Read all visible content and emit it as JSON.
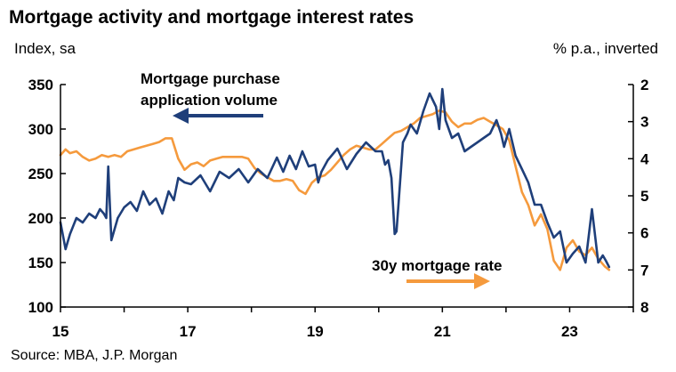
{
  "chart_data": {
    "type": "line",
    "title": "Mortgage activity and mortgage interest rates",
    "left_axis_label": "Index, sa",
    "right_axis_label": "% p.a., inverted",
    "source": "Source: MBA, J.P. Morgan",
    "x_ticks": [
      "15",
      "17",
      "19",
      "21",
      "23"
    ],
    "xlim": [
      2015,
      2024
    ],
    "y_left": {
      "ticks": [
        "100",
        "150",
        "200",
        "250",
        "300",
        "350"
      ],
      "range": [
        100,
        350
      ]
    },
    "y_right": {
      "ticks": [
        "2",
        "3",
        "4",
        "5",
        "6",
        "7",
        "8"
      ],
      "range": [
        2,
        8
      ],
      "inverted": true
    },
    "grid": false,
    "annotations": {
      "purchase": [
        "Mortgage purchase",
        "application volume"
      ],
      "rate": "30y mortgage rate"
    },
    "colors": {
      "purchase": "#1f3f7a",
      "rate": "#f59a3d"
    },
    "series": [
      {
        "name": "Mortgage purchase application volume",
        "axis": "left",
        "color": "#1f3f7a",
        "x": [
          2015.0,
          2015.08,
          2015.15,
          2015.25,
          2015.35,
          2015.45,
          2015.55,
          2015.62,
          2015.68,
          2015.72,
          2015.75,
          2015.8,
          2015.9,
          2016.0,
          2016.1,
          2016.2,
          2016.3,
          2016.4,
          2016.5,
          2016.6,
          2016.7,
          2016.78,
          2016.85,
          2016.95,
          2017.05,
          2017.2,
          2017.35,
          2017.5,
          2017.65,
          2017.8,
          2017.95,
          2018.1,
          2018.25,
          2018.4,
          2018.5,
          2018.6,
          2018.7,
          2018.8,
          2018.9,
          2019.0,
          2019.05,
          2019.1,
          2019.2,
          2019.35,
          2019.5,
          2019.65,
          2019.8,
          2019.95,
          2020.05,
          2020.1,
          2020.15,
          2020.2,
          2020.25,
          2020.28,
          2020.32,
          2020.38,
          2020.45,
          2020.5,
          2020.6,
          2020.7,
          2020.8,
          2020.9,
          2020.95,
          2021.0,
          2021.05,
          2021.15,
          2021.25,
          2021.35,
          2021.45,
          2021.55,
          2021.65,
          2021.75,
          2021.85,
          2021.92,
          2021.97,
          2022.05,
          2022.15,
          2022.25,
          2022.35,
          2022.45,
          2022.55,
          2022.65,
          2022.75,
          2022.85,
          2022.95,
          2023.05,
          2023.15,
          2023.25,
          2023.35,
          2023.45,
          2023.52,
          2023.57,
          2023.62
        ],
        "values": [
          195,
          165,
          182,
          200,
          195,
          205,
          200,
          210,
          205,
          200,
          258,
          175,
          200,
          212,
          218,
          208,
          230,
          215,
          222,
          205,
          230,
          220,
          245,
          240,
          238,
          248,
          230,
          252,
          245,
          255,
          240,
          255,
          245,
          268,
          252,
          270,
          255,
          275,
          258,
          260,
          240,
          252,
          265,
          278,
          255,
          272,
          285,
          275,
          275,
          260,
          265,
          245,
          182,
          185,
          225,
          285,
          295,
          305,
          295,
          320,
          340,
          325,
          300,
          345,
          310,
          290,
          295,
          275,
          280,
          285,
          290,
          295,
          310,
          295,
          280,
          300,
          270,
          255,
          240,
          215,
          215,
          195,
          178,
          185,
          150,
          160,
          168,
          150,
          210,
          150,
          158,
          152,
          145
        ]
      },
      {
        "name": "30y mortgage rate",
        "axis": "right",
        "color": "#f59a3d",
        "x": [
          2015.0,
          2015.08,
          2015.15,
          2015.25,
          2015.35,
          2015.45,
          2015.55,
          2015.65,
          2015.75,
          2015.85,
          2015.95,
          2016.05,
          2016.15,
          2016.25,
          2016.35,
          2016.45,
          2016.55,
          2016.65,
          2016.75,
          2016.85,
          2016.95,
          2017.05,
          2017.15,
          2017.25,
          2017.35,
          2017.45,
          2017.55,
          2017.65,
          2017.75,
          2017.85,
          2017.95,
          2018.05,
          2018.15,
          2018.25,
          2018.35,
          2018.45,
          2018.55,
          2018.65,
          2018.75,
          2018.85,
          2018.95,
          2019.05,
          2019.15,
          2019.25,
          2019.35,
          2019.45,
          2019.55,
          2019.65,
          2019.75,
          2019.85,
          2019.95,
          2020.05,
          2020.15,
          2020.25,
          2020.35,
          2020.45,
          2020.55,
          2020.65,
          2020.75,
          2020.85,
          2020.95,
          2021.05,
          2021.15,
          2021.25,
          2021.35,
          2021.45,
          2021.55,
          2021.65,
          2021.75,
          2021.85,
          2021.95,
          2022.05,
          2022.15,
          2022.25,
          2022.35,
          2022.45,
          2022.55,
          2022.65,
          2022.75,
          2022.85,
          2022.95,
          2023.05,
          2023.15,
          2023.25,
          2023.35,
          2023.45,
          2023.55,
          2023.62
        ],
        "values": [
          3.9,
          3.75,
          3.85,
          3.8,
          3.95,
          4.05,
          4.0,
          3.9,
          3.95,
          3.9,
          3.95,
          3.8,
          3.75,
          3.7,
          3.65,
          3.6,
          3.55,
          3.45,
          3.45,
          4.0,
          4.3,
          4.15,
          4.1,
          4.2,
          4.05,
          4.0,
          3.95,
          3.95,
          3.95,
          3.95,
          4.0,
          4.25,
          4.4,
          4.5,
          4.6,
          4.6,
          4.55,
          4.6,
          4.85,
          4.95,
          4.65,
          4.5,
          4.45,
          4.3,
          4.1,
          3.9,
          3.75,
          3.65,
          3.7,
          3.75,
          3.75,
          3.6,
          3.45,
          3.3,
          3.25,
          3.15,
          3.05,
          2.9,
          2.85,
          2.8,
          2.7,
          2.75,
          3.0,
          3.15,
          3.05,
          3.05,
          2.95,
          2.9,
          3.0,
          3.1,
          3.2,
          3.5,
          4.2,
          4.9,
          5.25,
          5.8,
          5.5,
          5.9,
          6.75,
          7.0,
          6.4,
          6.2,
          6.5,
          6.6,
          6.4,
          6.7,
          6.9,
          7.0
        ]
      }
    ]
  }
}
